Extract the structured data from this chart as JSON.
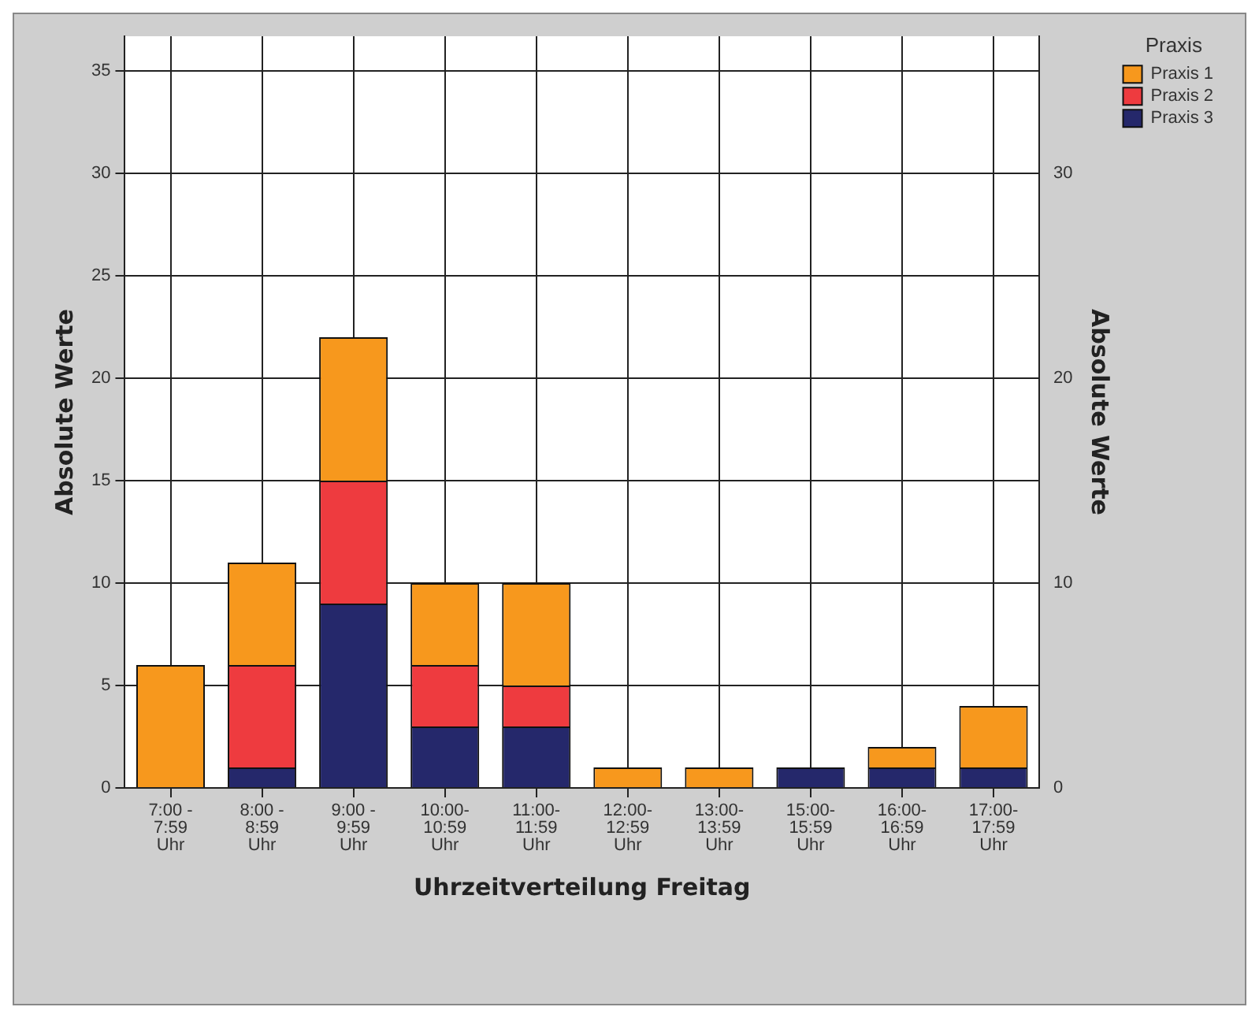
{
  "chart_data": {
    "type": "bar",
    "stacked": true,
    "xlabel": "Uhrzeitverteilung Freitag",
    "ylabel": "Absolute Werte",
    "y2label": "Absolute Werte",
    "legend_title": "Praxis",
    "legend": "top right",
    "grid": true,
    "categories": [
      "7:00 - 7:59 Uhr",
      "8:00 - 8:59 Uhr",
      "9:00 - 9:59 Uhr",
      "10:00- 10:59 Uhr",
      "11:00- 11:59 Uhr",
      "12:00- 12:59 Uhr",
      "13:00- 13:59 Uhr",
      "15:00- 15:59 Uhr",
      "16:00- 16:59 Uhr",
      "17:00- 17:59 Uhr"
    ],
    "series": [
      {
        "name": "Praxis 3",
        "color": "#25286b",
        "values": [
          0,
          1,
          9,
          3,
          3,
          0,
          0,
          1,
          1,
          1
        ]
      },
      {
        "name": "Praxis 2",
        "color": "#ee3b3f",
        "values": [
          0,
          5,
          6,
          3,
          2,
          0,
          0,
          0,
          0,
          0
        ]
      },
      {
        "name": "Praxis 1",
        "color": "#f7981d",
        "values": [
          6,
          5,
          7,
          4,
          5,
          1,
          1,
          0,
          1,
          3
        ]
      }
    ],
    "ylim": [
      0,
      36.7
    ],
    "yticks": [
      0,
      5,
      10,
      15,
      20,
      25,
      30,
      35
    ],
    "y2lim": [
      0,
      36.7
    ],
    "y2ticks": [
      0,
      10,
      20,
      30
    ]
  }
}
